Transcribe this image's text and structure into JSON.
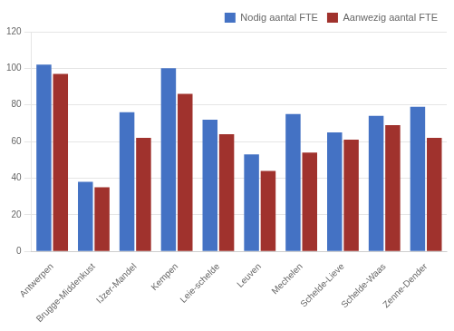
{
  "chart_data": {
    "type": "bar",
    "categories": [
      "Antwerpen",
      "Brugge-Middenkust",
      "IJzer-Mandel",
      "Kempen",
      "Leie-schelde",
      "Leuven",
      "Mechelen",
      "Schelde-Lieve",
      "Schelde-Waas",
      "Zenne-Dender"
    ],
    "series": [
      {
        "name": "Nodig aantal FTE",
        "color": "#4472C4",
        "values": [
          102,
          38,
          76,
          100,
          72,
          53,
          75,
          65,
          74,
          79
        ]
      },
      {
        "name": "Aanwezig aantal FTE",
        "color": "#A0322D",
        "values": [
          97,
          35,
          62,
          86,
          64,
          44,
          54,
          61,
          69,
          62
        ]
      }
    ],
    "ylim": [
      0,
      120
    ],
    "yticks": [
      0,
      20,
      40,
      60,
      80,
      100,
      120
    ],
    "grid": true,
    "legend": "upper right"
  }
}
